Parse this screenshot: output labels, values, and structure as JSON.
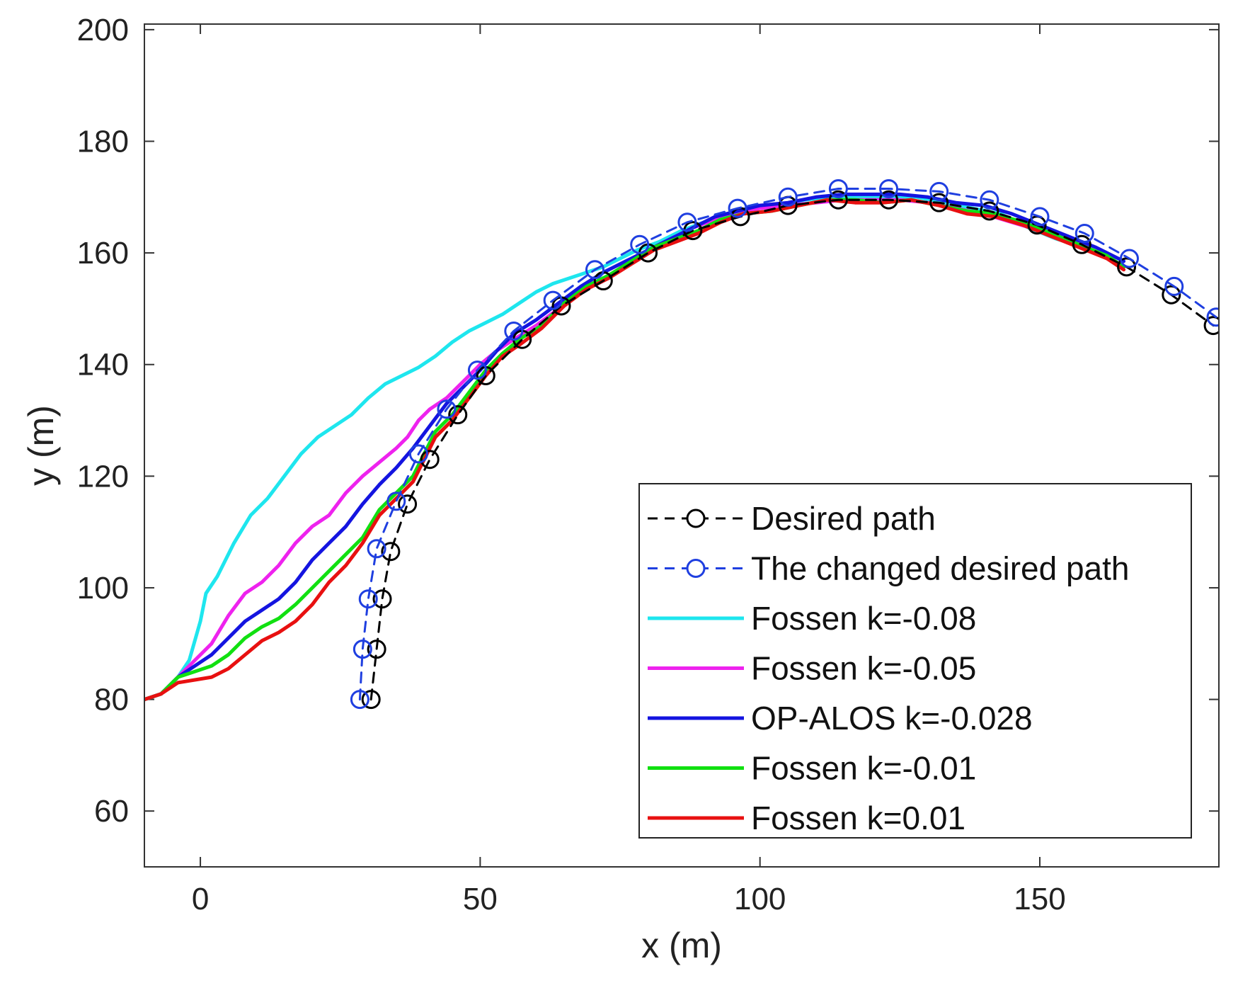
{
  "chart_data": {
    "type": "line",
    "title": "",
    "xlabel": "x (m)",
    "ylabel": "y (m)",
    "xlim": [
      -10,
      182
    ],
    "ylim": [
      50,
      201
    ],
    "xticks": [
      0,
      50,
      100,
      150
    ],
    "yticks": [
      60,
      80,
      100,
      120,
      140,
      160,
      180,
      200
    ],
    "grid": false,
    "legend_position": "bottom-right",
    "series": [
      {
        "name": "Desired path",
        "color": "#000000",
        "style": "dashed",
        "marker": "circle",
        "points": [
          [
            30.5,
            80
          ],
          [
            31.5,
            89
          ],
          [
            32.5,
            98
          ],
          [
            34,
            106.5
          ],
          [
            37,
            115
          ],
          [
            41,
            123
          ],
          [
            46,
            131
          ],
          [
            51,
            138
          ],
          [
            57.5,
            144.5
          ],
          [
            64.5,
            150.5
          ],
          [
            72,
            155
          ],
          [
            80,
            160
          ],
          [
            88,
            164
          ],
          [
            96.5,
            166.5
          ],
          [
            105,
            168.5
          ],
          [
            114,
            169.5
          ],
          [
            123,
            169.5
          ],
          [
            132,
            169
          ],
          [
            141,
            167.5
          ],
          [
            149.5,
            165
          ],
          [
            157.5,
            161.5
          ],
          [
            165.5,
            157.5
          ],
          [
            173.5,
            152.5
          ],
          [
            181,
            147
          ]
        ]
      },
      {
        "name": "The changed desired path",
        "color": "#1f3fe0",
        "style": "dashed",
        "marker": "circle",
        "points": [
          [
            28.5,
            80
          ],
          [
            29,
            89
          ],
          [
            30,
            98
          ],
          [
            31.5,
            107
          ],
          [
            35,
            115.5
          ],
          [
            39,
            124
          ],
          [
            44,
            132
          ],
          [
            49.5,
            139
          ],
          [
            56,
            146
          ],
          [
            63,
            151.5
          ],
          [
            70.5,
            157
          ],
          [
            78.5,
            161.5
          ],
          [
            87,
            165.5
          ],
          [
            96,
            168
          ],
          [
            105,
            170
          ],
          [
            114,
            171.5
          ],
          [
            123,
            171.5
          ],
          [
            132,
            171
          ],
          [
            141,
            169.5
          ],
          [
            150,
            166.5
          ],
          [
            158,
            163.5
          ],
          [
            166,
            159
          ],
          [
            174,
            154
          ],
          [
            181.5,
            148.5
          ]
        ]
      },
      {
        "name": "Fossen k=-0.08",
        "color": "#1ee6ee",
        "style": "solid",
        "marker": "none",
        "points": [
          [
            -10,
            80
          ],
          [
            -7,
            81
          ],
          [
            -4,
            84
          ],
          [
            -2,
            87
          ],
          [
            0,
            94
          ],
          [
            1,
            99
          ],
          [
            3,
            102
          ],
          [
            6,
            108
          ],
          [
            9,
            113
          ],
          [
            12,
            116
          ],
          [
            15,
            120
          ],
          [
            18,
            124
          ],
          [
            21,
            127
          ],
          [
            24,
            129
          ],
          [
            27,
            131
          ],
          [
            30,
            134
          ],
          [
            33,
            136.5
          ],
          [
            36,
            138
          ],
          [
            39,
            139.5
          ],
          [
            42,
            141.5
          ],
          [
            45,
            144
          ],
          [
            48,
            146
          ],
          [
            51,
            147.5
          ],
          [
            54,
            149
          ],
          [
            57,
            151
          ],
          [
            60,
            153
          ],
          [
            63,
            154.5
          ],
          [
            66,
            155.5
          ],
          [
            69,
            156.5
          ],
          [
            72,
            157.5
          ],
          [
            75,
            159
          ],
          [
            78,
            160.5
          ],
          [
            82,
            162
          ],
          [
            86,
            164
          ],
          [
            90,
            165.5
          ],
          [
            94,
            167
          ],
          [
            98,
            168
          ],
          [
            103,
            168.5
          ],
          [
            108,
            169.5
          ],
          [
            113,
            170
          ],
          [
            118,
            170
          ],
          [
            123,
            170
          ],
          [
            128,
            170
          ],
          [
            133,
            169
          ],
          [
            138,
            168
          ],
          [
            143,
            167
          ],
          [
            148,
            164.5
          ],
          [
            153,
            162.5
          ],
          [
            158,
            161
          ],
          [
            163,
            158.5
          ],
          [
            165,
            157.5
          ]
        ]
      },
      {
        "name": "Fossen k=-0.05",
        "color": "#ee22ee",
        "style": "solid",
        "marker": "none",
        "points": [
          [
            -10,
            80
          ],
          [
            -7,
            81
          ],
          [
            -4,
            84
          ],
          [
            -1,
            87
          ],
          [
            2,
            90
          ],
          [
            5,
            95
          ],
          [
            8,
            99
          ],
          [
            11,
            101
          ],
          [
            14,
            104
          ],
          [
            17,
            108
          ],
          [
            20,
            111
          ],
          [
            23,
            113
          ],
          [
            26,
            117
          ],
          [
            29,
            120
          ],
          [
            32,
            122.5
          ],
          [
            35,
            125
          ],
          [
            37,
            127
          ],
          [
            39,
            130
          ],
          [
            41,
            132
          ],
          [
            44,
            134
          ],
          [
            47,
            137
          ],
          [
            50,
            140
          ],
          [
            53,
            142.5
          ],
          [
            56,
            144.5
          ],
          [
            60,
            147
          ],
          [
            64,
            150
          ],
          [
            68,
            153
          ],
          [
            72,
            155
          ],
          [
            76,
            158
          ],
          [
            80,
            160.5
          ],
          [
            84,
            162.5
          ],
          [
            88,
            164.5
          ],
          [
            92,
            166
          ],
          [
            96,
            167
          ],
          [
            100,
            168
          ],
          [
            105,
            168.5
          ],
          [
            110,
            169
          ],
          [
            115,
            169.5
          ],
          [
            120,
            169.5
          ],
          [
            125,
            169.5
          ],
          [
            130,
            169
          ],
          [
            135,
            168
          ],
          [
            140,
            167
          ],
          [
            145,
            165.5
          ],
          [
            150,
            164
          ],
          [
            155,
            162.5
          ],
          [
            160,
            160
          ],
          [
            165,
            157.5
          ]
        ]
      },
      {
        "name": "OP-ALOS k=-0.028",
        "color": "#1414e0",
        "style": "solid",
        "marker": "none",
        "points": [
          [
            -10,
            80
          ],
          [
            -7,
            81
          ],
          [
            -4,
            84
          ],
          [
            -1,
            86
          ],
          [
            2,
            88
          ],
          [
            5,
            91
          ],
          [
            8,
            94
          ],
          [
            11,
            96
          ],
          [
            14,
            98
          ],
          [
            17,
            101
          ],
          [
            20,
            105
          ],
          [
            23,
            108
          ],
          [
            26,
            111
          ],
          [
            29,
            115
          ],
          [
            32,
            118.5
          ],
          [
            35,
            121.5
          ],
          [
            38,
            125
          ],
          [
            41,
            129
          ],
          [
            44,
            133
          ],
          [
            47,
            136
          ],
          [
            50,
            139
          ],
          [
            53,
            142.5
          ],
          [
            56,
            145.5
          ],
          [
            60,
            148
          ],
          [
            64,
            151
          ],
          [
            68,
            154
          ],
          [
            72,
            156.5
          ],
          [
            76,
            158.5
          ],
          [
            80,
            160.5
          ],
          [
            84,
            162.5
          ],
          [
            88,
            164.5
          ],
          [
            92,
            166.5
          ],
          [
            96,
            167.5
          ],
          [
            100,
            168.5
          ],
          [
            105,
            169
          ],
          [
            110,
            170
          ],
          [
            115,
            170.5
          ],
          [
            120,
            170.5
          ],
          [
            125,
            170.5
          ],
          [
            130,
            170
          ],
          [
            135,
            169
          ],
          [
            140,
            168.5
          ],
          [
            145,
            167
          ],
          [
            150,
            165
          ],
          [
            155,
            163
          ],
          [
            160,
            161
          ],
          [
            165,
            158.5
          ]
        ]
      },
      {
        "name": "Fossen k=-0.01",
        "color": "#11e011",
        "style": "solid",
        "marker": "none",
        "points": [
          [
            -10,
            80
          ],
          [
            -7,
            81
          ],
          [
            -4,
            84
          ],
          [
            -1,
            85
          ],
          [
            2,
            86
          ],
          [
            5,
            88
          ],
          [
            8,
            91
          ],
          [
            11,
            93
          ],
          [
            14,
            94.5
          ],
          [
            17,
            97
          ],
          [
            20,
            100
          ],
          [
            23,
            103
          ],
          [
            26,
            106
          ],
          [
            29,
            109
          ],
          [
            32,
            114
          ],
          [
            35,
            117
          ],
          [
            38,
            120
          ],
          [
            40,
            124
          ],
          [
            42,
            128
          ],
          [
            45,
            131
          ],
          [
            48,
            135
          ],
          [
            51,
            139
          ],
          [
            54,
            142
          ],
          [
            57,
            144.5
          ],
          [
            61,
            147
          ],
          [
            65,
            151
          ],
          [
            69,
            154
          ],
          [
            73,
            156
          ],
          [
            77,
            158.5
          ],
          [
            81,
            161
          ],
          [
            85,
            162.5
          ],
          [
            89,
            164
          ],
          [
            93,
            166
          ],
          [
            97,
            167
          ],
          [
            102,
            167.5
          ],
          [
            107,
            168.5
          ],
          [
            112,
            169.5
          ],
          [
            117,
            169.5
          ],
          [
            122,
            169
          ],
          [
            127,
            169.5
          ],
          [
            132,
            168.5
          ],
          [
            137,
            167.5
          ],
          [
            142,
            167
          ],
          [
            147,
            165.5
          ],
          [
            152,
            163.5
          ],
          [
            157,
            161.5
          ],
          [
            162,
            159.5
          ],
          [
            165,
            157.5
          ]
        ]
      },
      {
        "name": "Fossen k=0.01",
        "color": "#e81010",
        "style": "solid",
        "marker": "none",
        "points": [
          [
            -10,
            80
          ],
          [
            -7,
            81
          ],
          [
            -4,
            83
          ],
          [
            -1,
            83.5
          ],
          [
            2,
            84
          ],
          [
            5,
            85.5
          ],
          [
            8,
            88
          ],
          [
            11,
            90.5
          ],
          [
            14,
            92
          ],
          [
            17,
            94
          ],
          [
            20,
            97
          ],
          [
            23,
            101
          ],
          [
            26,
            104
          ],
          [
            29,
            108
          ],
          [
            32,
            113
          ],
          [
            35,
            116
          ],
          [
            38,
            119
          ],
          [
            40,
            123
          ],
          [
            42,
            127
          ],
          [
            45,
            130
          ],
          [
            48,
            134
          ],
          [
            51,
            138
          ],
          [
            54,
            141.5
          ],
          [
            57,
            143.5
          ],
          [
            61,
            146.5
          ],
          [
            65,
            150.5
          ],
          [
            69,
            153.5
          ],
          [
            73,
            155.5
          ],
          [
            77,
            158
          ],
          [
            81,
            160.5
          ],
          [
            85,
            162
          ],
          [
            89,
            163.5
          ],
          [
            93,
            165.5
          ],
          [
            97,
            167
          ],
          [
            102,
            167.5
          ],
          [
            107,
            168.5
          ],
          [
            112,
            169.5
          ],
          [
            117,
            169
          ],
          [
            122,
            169
          ],
          [
            127,
            169.5
          ],
          [
            132,
            168.5
          ],
          [
            137,
            167
          ],
          [
            142,
            166.5
          ],
          [
            147,
            165
          ],
          [
            152,
            163
          ],
          [
            157,
            161
          ],
          [
            162,
            159
          ],
          [
            165,
            157
          ]
        ]
      }
    ]
  }
}
